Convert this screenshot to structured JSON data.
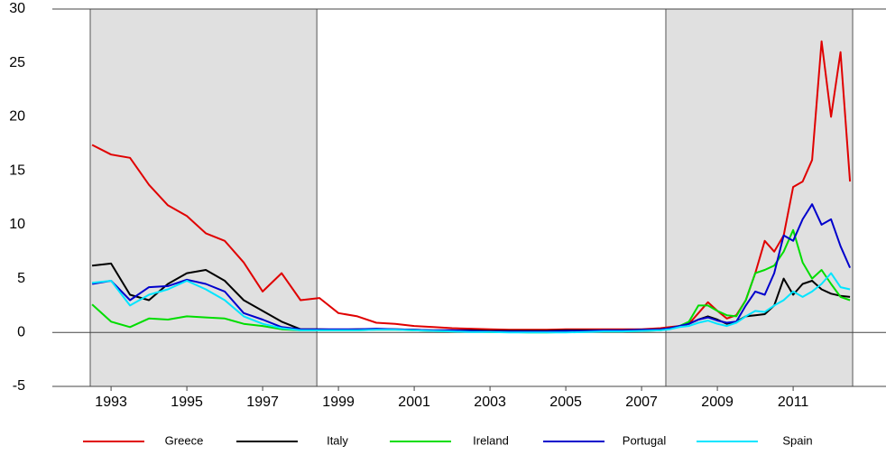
{
  "chart_data": {
    "type": "line",
    "xlim": [
      1991.45,
      2013.45
    ],
    "ylim": [
      -5,
      30
    ],
    "yticks": [
      -5,
      0,
      5,
      10,
      15,
      20,
      25,
      30
    ],
    "xticks": [
      1993,
      1995,
      1997,
      1999,
      2001,
      2003,
      2005,
      2007,
      2009,
      2011
    ],
    "shaded_regions": [
      [
        1992.45,
        1998.43
      ],
      [
        2007.64,
        2012.57
      ]
    ],
    "x": [
      1992.5,
      1993,
      1993.5,
      1994,
      1994.5,
      1995,
      1995.5,
      1996,
      1996.5,
      1997,
      1997.5,
      1998,
      1998.5,
      1999,
      1999.5,
      2000,
      2000.5,
      2001,
      2001.5,
      2002,
      2002.5,
      2003,
      2003.5,
      2004,
      2004.5,
      2005,
      2005.5,
      2006,
      2006.5,
      2007,
      2007.5,
      2007.75,
      2008,
      2008.25,
      2008.5,
      2008.75,
      2009,
      2009.25,
      2009.5,
      2009.75,
      2010,
      2010.25,
      2010.5,
      2010.75,
      2011,
      2011.25,
      2011.5,
      2011.75,
      2012,
      2012.25,
      2012.5
    ],
    "series": [
      {
        "name": "Greece",
        "color": "#e00000",
        "values": [
          17.4,
          16.5,
          16.2,
          13.7,
          11.8,
          10.8,
          9.2,
          8.5,
          6.5,
          3.8,
          5.5,
          3.0,
          3.2,
          1.8,
          1.5,
          0.9,
          0.8,
          0.6,
          0.5,
          0.4,
          0.35,
          0.3,
          0.25,
          0.25,
          0.25,
          0.3,
          0.3,
          0.3,
          0.3,
          0.3,
          0.4,
          0.5,
          0.6,
          0.8,
          1.8,
          2.8,
          2.0,
          1.3,
          1.6,
          3.0,
          5.5,
          8.5,
          7.5,
          9.0,
          13.5,
          14.0,
          16.0,
          27.0,
          20.0,
          26.0,
          14.0
        ]
      },
      {
        "name": "Italy",
        "color": "#000000",
        "values": [
          6.2,
          6.4,
          3.5,
          3.0,
          4.5,
          5.5,
          5.8,
          4.8,
          3.0,
          2.0,
          1.0,
          0.3,
          0.3,
          0.25,
          0.3,
          0.3,
          0.3,
          0.25,
          0.2,
          0.2,
          0.2,
          0.15,
          0.15,
          0.15,
          0.15,
          0.2,
          0.2,
          0.2,
          0.2,
          0.25,
          0.3,
          0.4,
          0.6,
          0.8,
          1.2,
          1.5,
          1.2,
          0.8,
          1.0,
          1.5,
          1.6,
          1.7,
          2.5,
          5.0,
          3.5,
          4.5,
          4.8,
          4.0,
          3.6,
          3.4,
          3.3
        ]
      },
      {
        "name": "Ireland",
        "color": "#00dd00",
        "values": [
          2.6,
          1.0,
          0.5,
          1.3,
          1.2,
          1.5,
          1.4,
          1.3,
          0.8,
          0.6,
          0.3,
          0.2,
          0.2,
          0.2,
          0.2,
          0.25,
          0.25,
          0.2,
          0.15,
          0.1,
          0.1,
          0.05,
          0.05,
          0.0,
          0.0,
          0.05,
          0.1,
          0.1,
          0.1,
          0.15,
          0.2,
          0.4,
          0.6,
          1.0,
          2.5,
          2.5,
          2.0,
          1.6,
          1.5,
          3.0,
          5.5,
          5.8,
          6.2,
          7.5,
          9.5,
          6.5,
          5.0,
          5.8,
          4.5,
          3.3,
          3.0
        ]
      },
      {
        "name": "Portugal",
        "color": "#0000cc",
        "values": [
          4.5,
          4.8,
          3.0,
          4.2,
          4.3,
          4.9,
          4.5,
          3.8,
          1.8,
          1.2,
          0.5,
          0.3,
          0.3,
          0.3,
          0.3,
          0.35,
          0.3,
          0.25,
          0.2,
          0.2,
          0.15,
          0.1,
          0.1,
          0.1,
          0.1,
          0.15,
          0.15,
          0.2,
          0.2,
          0.25,
          0.3,
          0.4,
          0.6,
          0.8,
          1.2,
          1.4,
          1.1,
          0.9,
          1.0,
          2.5,
          3.8,
          3.5,
          5.5,
          9.0,
          8.5,
          10.5,
          11.9,
          10.0,
          10.5,
          8.0,
          6.0
        ]
      },
      {
        "name": "Spain",
        "color": "#00e5ff",
        "values": [
          4.6,
          4.8,
          2.5,
          3.5,
          4.0,
          4.8,
          4.0,
          3.0,
          1.5,
          0.8,
          0.4,
          0.2,
          0.2,
          0.2,
          0.2,
          0.25,
          0.25,
          0.2,
          0.15,
          0.1,
          0.05,
          0.05,
          0.0,
          0.0,
          0.0,
          0.0,
          0.05,
          0.1,
          0.1,
          0.15,
          0.2,
          0.3,
          0.5,
          0.6,
          0.9,
          1.1,
          0.8,
          0.6,
          0.9,
          1.5,
          2.0,
          1.9,
          2.5,
          3.0,
          3.8,
          3.3,
          3.8,
          4.5,
          5.5,
          4.2,
          4.0
        ]
      }
    ]
  }
}
